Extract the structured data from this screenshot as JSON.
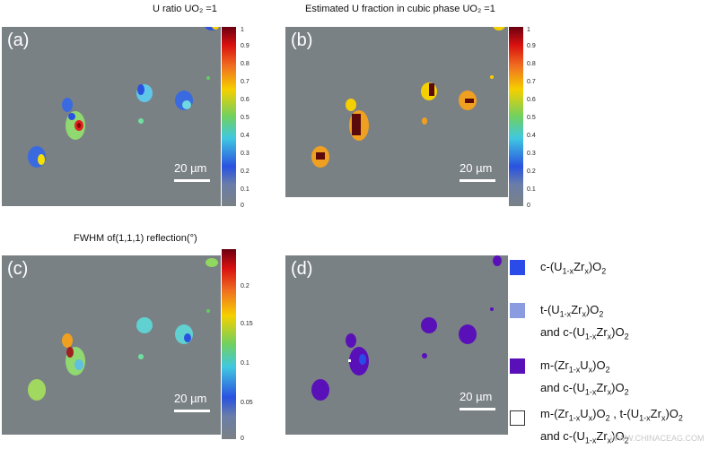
{
  "panels": [
    {
      "label": "(a)",
      "scale": "20 µm"
    },
    {
      "label": "(b)",
      "scale": "20 µm"
    },
    {
      "label": "(c)",
      "scale": "20 µm"
    },
    {
      "label": "(d)",
      "scale": "20 µm"
    }
  ],
  "colorbars": {
    "a": {
      "title": "U ratio UO₂ =1",
      "ticks": [
        "1",
        "0.9",
        "0.8",
        "0.7",
        "0.6",
        "0.5",
        "0.4",
        "0.3",
        "0.2",
        "0.1",
        "0"
      ]
    },
    "b": {
      "title": "Estimated U fraction in cubic phase UO₂ =1",
      "ticks": [
        "1",
        "0.9",
        "0.8",
        "0.7",
        "0.6",
        "0.5",
        "0.4",
        "0.3",
        "0.2",
        "0.1",
        "0"
      ]
    },
    "c": {
      "title": "FWHM of(1,1,1) reflection(°)",
      "ticks": [
        "0.2",
        "0.15",
        "0.1",
        "0.05",
        "0"
      ]
    }
  },
  "legend": [
    {
      "line1": "c-(U1-xZrx)O2",
      "line2": "",
      "color": "#2a4be8"
    },
    {
      "line1": "t-(U1-xZrx)O2",
      "line2": "and c-(U1-xZrx)O2",
      "color": "#8a9be0"
    },
    {
      "line1": "m-(Zr1-xUx)O2",
      "line2": "and c-(U1-xZrx)O2",
      "color": "#5a10b8"
    },
    {
      "line1": "m-(Zr1-xUx)O2 , t-(U1-xZrx)O2",
      "line2": "and c-(U1-xZrx)O2",
      "color": "#ffffff"
    }
  ],
  "watermark": "WWW.CHINACEAG.COM"
}
